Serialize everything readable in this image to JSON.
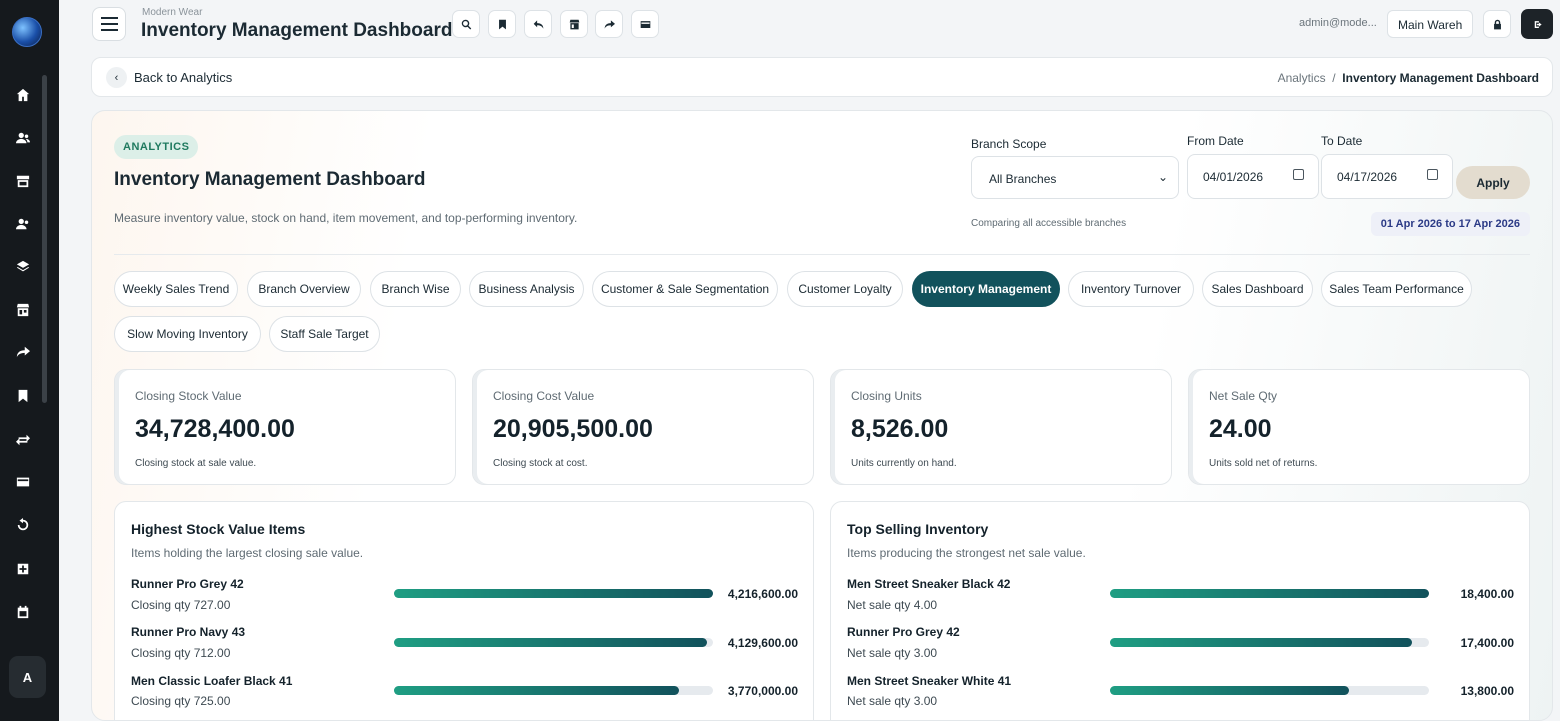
{
  "sidebar": {
    "user_initial": "A"
  },
  "header": {
    "company": "Modern Wear",
    "title": "Inventory Management Dashboard",
    "user_email": "admin@mode...",
    "warehouse": "Main Wareh"
  },
  "breadcrumb": {
    "back_label": "Back to Analytics",
    "parent": "Analytics",
    "separator": "/",
    "current": "Inventory Management Dashboard"
  },
  "dashboard": {
    "badge": "ANALYTICS",
    "title": "Inventory Management Dashboard",
    "description": "Measure inventory value, stock on hand, item movement, and top-performing inventory.",
    "filters": {
      "branch_label": "Branch Scope",
      "branch_value": "All Branches",
      "from_label": "From Date",
      "from_value": "04/01/2026",
      "to_label": "To Date",
      "to_value": "04/17/2026",
      "apply_label": "Apply",
      "compare_note": "Comparing all accessible branches",
      "range_text": "01 Apr 2026 to 17 Apr 2026"
    }
  },
  "tabs": [
    {
      "label": "Weekly Sales Trend"
    },
    {
      "label": "Branch Overview"
    },
    {
      "label": "Branch Wise"
    },
    {
      "label": "Business Analysis"
    },
    {
      "label": "Customer & Sale Segmentation"
    },
    {
      "label": "Customer Loyalty"
    },
    {
      "label": "Inventory Management",
      "active": true
    },
    {
      "label": "Inventory Turnover"
    },
    {
      "label": "Sales Dashboard"
    },
    {
      "label": "Sales Team Performance"
    },
    {
      "label": "Slow Moving Inventory"
    },
    {
      "label": "Staff Sale Target"
    }
  ],
  "kpis": [
    {
      "label": "Closing Stock Value",
      "value": "34,728,400.00",
      "note": "Closing stock at sale value."
    },
    {
      "label": "Closing Cost Value",
      "value": "20,905,500.00",
      "note": "Closing stock at cost."
    },
    {
      "label": "Closing Units",
      "value": "8,526.00",
      "note": "Units currently on hand."
    },
    {
      "label": "Net Sale Qty",
      "value": "24.00",
      "note": "Units sold net of returns."
    }
  ],
  "highest_stock": {
    "title": "Highest Stock Value Items",
    "subtitle": "Items holding the largest closing sale value.",
    "rows": [
      {
        "name": "Runner Pro Grey 42",
        "sub": "Closing qty 727.00",
        "value": "4,216,600.00",
        "fraction": 1.0
      },
      {
        "name": "Runner Pro Navy 43",
        "sub": "Closing qty 712.00",
        "value": "4,129,600.00",
        "fraction": 0.98
      },
      {
        "name": "Men Classic Loafer Black 41",
        "sub": "Closing qty 725.00",
        "value": "3,770,000.00",
        "fraction": 0.894
      }
    ]
  },
  "top_selling": {
    "title": "Top Selling Inventory",
    "subtitle": "Items producing the strongest net sale value.",
    "rows": [
      {
        "name": "Men Street Sneaker Black 42",
        "sub": "Net sale qty 4.00",
        "value": "18,400.00",
        "fraction": 1.0
      },
      {
        "name": "Runner Pro Grey 42",
        "sub": "Net sale qty 3.00",
        "value": "17,400.00",
        "fraction": 0.946
      },
      {
        "name": "Men Street Sneaker White 41",
        "sub": "Net sale qty 3.00",
        "value": "13,800.00",
        "fraction": 0.75
      }
    ]
  }
}
